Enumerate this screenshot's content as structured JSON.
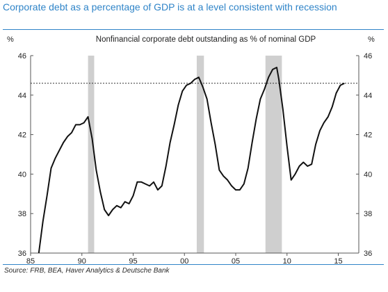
{
  "headline": "Corporate debt as a percentage of GDP is at a level consistent with recession",
  "source": "Source: FRB, BEA, Haver Analytics & Deutsche Bank",
  "colors": {
    "headline": "#2f84c8",
    "line": "#111111",
    "recession": "#cfcfcf",
    "reference": "#333333"
  },
  "chart_data": {
    "type": "line",
    "title": "Nonfinancial corporate debt outstanding as % of nominal GDP",
    "y_unit_left": "%",
    "y_unit_right": "%",
    "x_tick_labels": [
      "85",
      "90",
      "95",
      "00",
      "05",
      "10",
      "15"
    ],
    "x_ticks": [
      1985,
      1990,
      1995,
      2000,
      2005,
      2010,
      2015
    ],
    "y_tick_labels": [
      "36",
      "38",
      "40",
      "42",
      "44",
      "46"
    ],
    "y_ticks": [
      36,
      38,
      40,
      42,
      44,
      46
    ],
    "xlim": [
      1985,
      2017
    ],
    "ylim": [
      36,
      46
    ],
    "reference_line": 44.6,
    "recession_bands": [
      [
        1990.6,
        1991.2
      ],
      [
        2001.2,
        2001.9
      ],
      [
        2007.9,
        2009.5
      ]
    ],
    "series": [
      {
        "x": [
          1985.8,
          1986.2,
          1986.6,
          1987.0,
          1987.4,
          1987.8,
          1988.2,
          1988.6,
          1989.0,
          1989.4,
          1989.8,
          1990.2,
          1990.6,
          1991.0,
          1991.4,
          1991.8,
          1992.2,
          1992.6,
          1993.0,
          1993.4,
          1993.8,
          1994.2,
          1994.6,
          1995.0,
          1995.4,
          1995.8,
          1996.2,
          1996.6,
          1997.0,
          1997.4,
          1997.8,
          1998.2,
          1998.6,
          1999.0,
          1999.4,
          1999.8,
          2000.2,
          2000.6,
          2001.0,
          2001.4,
          2001.8,
          2002.2,
          2002.6,
          2003.0,
          2003.4,
          2003.8,
          2004.2,
          2004.6,
          2005.0,
          2005.4,
          2005.8,
          2006.2,
          2006.6,
          2007.0,
          2007.4,
          2007.8,
          2008.2,
          2008.6,
          2009.0,
          2009.2,
          2009.6,
          2010.0,
          2010.4,
          2010.8,
          2011.2,
          2011.6,
          2012.0,
          2012.4,
          2012.8,
          2013.2,
          2013.6,
          2014.0,
          2014.4,
          2014.8,
          2015.2,
          2015.6
        ],
        "y": [
          36.0,
          37.6,
          38.9,
          40.3,
          40.8,
          41.2,
          41.6,
          41.9,
          42.1,
          42.5,
          42.5,
          42.6,
          42.9,
          41.8,
          40.2,
          39.1,
          38.2,
          37.9,
          38.2,
          38.4,
          38.3,
          38.6,
          38.5,
          38.9,
          39.6,
          39.6,
          39.5,
          39.4,
          39.6,
          39.2,
          39.4,
          40.4,
          41.6,
          42.5,
          43.5,
          44.2,
          44.5,
          44.6,
          44.8,
          44.9,
          44.4,
          43.8,
          42.6,
          41.5,
          40.2,
          39.9,
          39.7,
          39.4,
          39.2,
          39.2,
          39.5,
          40.3,
          41.6,
          42.8,
          43.8,
          44.3,
          44.9,
          45.3,
          45.4,
          44.8,
          43.3,
          41.4,
          39.7,
          40.0,
          40.4,
          40.6,
          40.4,
          40.5,
          41.5,
          42.2,
          42.6,
          42.9,
          43.4,
          44.1,
          44.5,
          44.6
        ]
      }
    ]
  }
}
